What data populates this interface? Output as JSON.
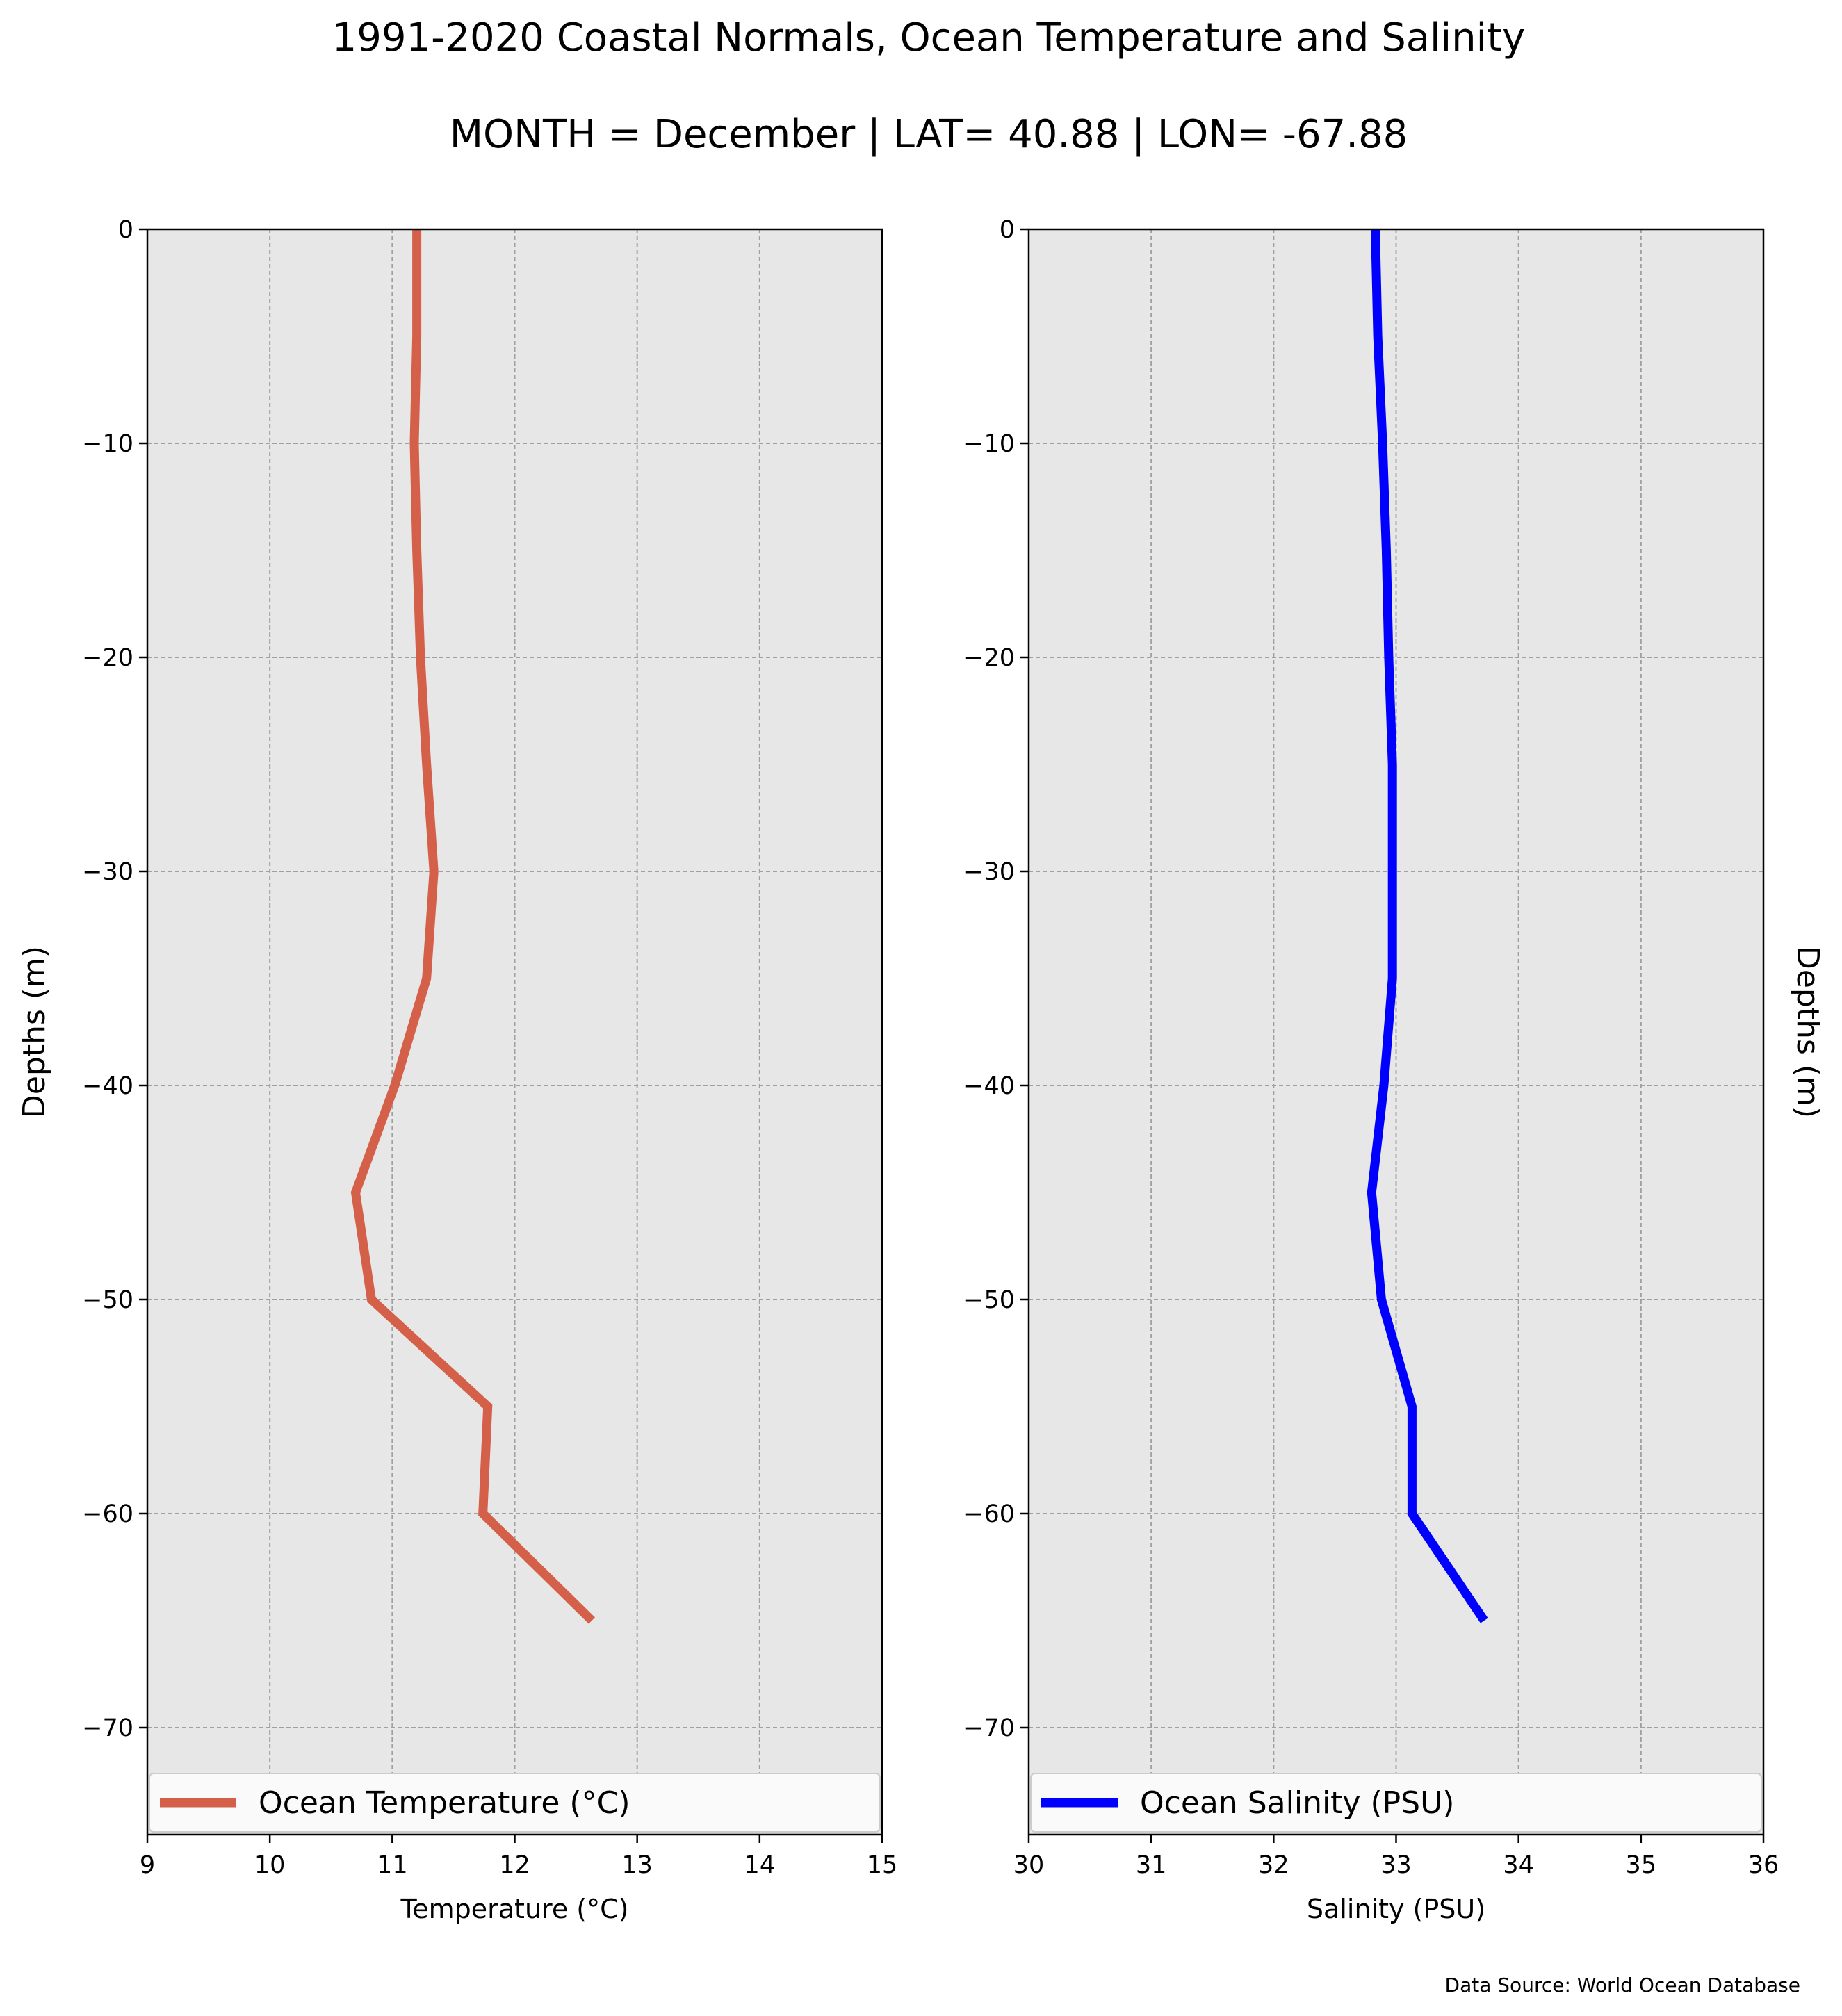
{
  "figure": {
    "title": "1991-2020 Coastal Normals, Ocean Temperature and Salinity",
    "subtitle": "MONTH = December | LAT= 40.88 | LON= -67.88",
    "source": "Data Source: World Ocean Database"
  },
  "chart_data": [
    {
      "type": "line",
      "xlabel": "Temperature ($^\\circ$C)",
      "xlabel_display": "Temperature (°C)",
      "ylabel": "Depths (m)",
      "xlim": [
        9,
        15
      ],
      "ylim": [
        -75,
        0
      ],
      "xticks": [
        "9",
        "10",
        "11",
        "12",
        "13",
        "14",
        "15"
      ],
      "yticks": [
        "0",
        "−10",
        "−20",
        "−30",
        "−40",
        "−50",
        "−60",
        "−70"
      ],
      "grid": true,
      "legend_position": "lower center",
      "series": [
        {
          "name": "Ocean Temperature (°C)",
          "color": "#d5604a",
          "points": [
            {
              "x": 11.2,
              "y": 0
            },
            {
              "x": 11.2,
              "y": -5
            },
            {
              "x": 11.18,
              "y": -10
            },
            {
              "x": 11.2,
              "y": -15
            },
            {
              "x": 11.23,
              "y": -20
            },
            {
              "x": 11.28,
              "y": -25
            },
            {
              "x": 11.34,
              "y": -30
            },
            {
              "x": 11.28,
              "y": -35
            },
            {
              "x": 11.02,
              "y": -40
            },
            {
              "x": 10.7,
              "y": -45
            },
            {
              "x": 10.83,
              "y": -50
            },
            {
              "x": 11.78,
              "y": -55
            },
            {
              "x": 11.74,
              "y": -60
            },
            {
              "x": 12.63,
              "y": -65
            }
          ]
        }
      ]
    },
    {
      "type": "line",
      "xlabel": "Salinity (PSU)",
      "ylabel": "Depths (m)",
      "xlim": [
        30,
        36
      ],
      "ylim": [
        -75,
        0
      ],
      "xticks": [
        "30",
        "31",
        "32",
        "33",
        "34",
        "35",
        "36"
      ],
      "yticks": [
        "0",
        "−10",
        "−20",
        "−30",
        "−40",
        "−50",
        "−60",
        "−70"
      ],
      "grid": true,
      "legend_position": "lower center",
      "series": [
        {
          "name": "Ocean Salinity (PSU)",
          "color": "#0000ff",
          "points": [
            {
              "x": 32.83,
              "y": 0
            },
            {
              "x": 32.85,
              "y": -5
            },
            {
              "x": 32.89,
              "y": -10
            },
            {
              "x": 32.92,
              "y": -15
            },
            {
              "x": 32.94,
              "y": -20
            },
            {
              "x": 32.97,
              "y": -25
            },
            {
              "x": 32.97,
              "y": -30
            },
            {
              "x": 32.97,
              "y": -35
            },
            {
              "x": 32.9,
              "y": -40
            },
            {
              "x": 32.8,
              "y": -45
            },
            {
              "x": 32.88,
              "y": -50
            },
            {
              "x": 33.13,
              "y": -55
            },
            {
              "x": 33.13,
              "y": -60
            },
            {
              "x": 33.72,
              "y": -65
            }
          ]
        }
      ]
    }
  ]
}
